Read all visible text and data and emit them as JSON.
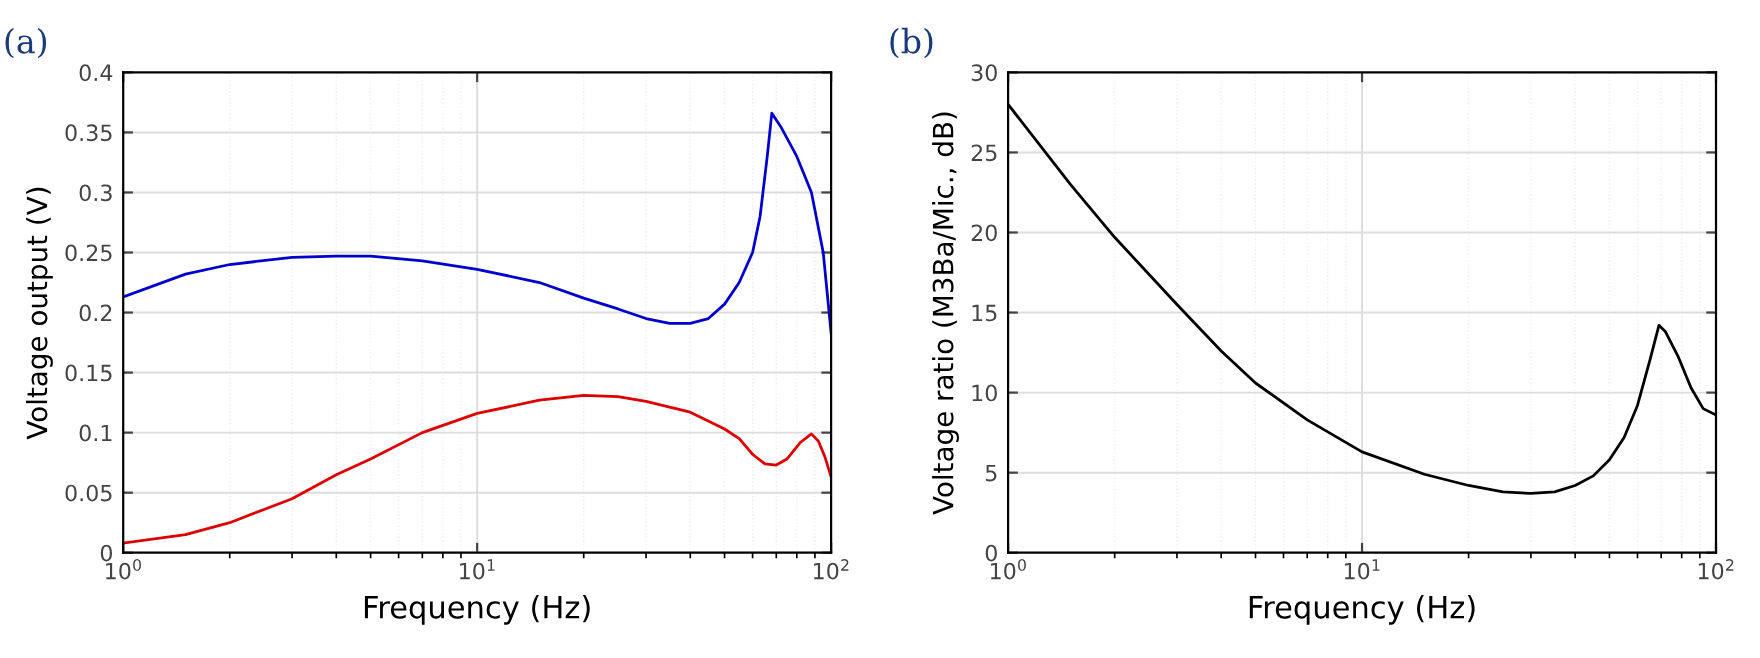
{
  "chart_data": [
    {
      "type": "line",
      "title": "(a)",
      "xlabel": "Frequency (Hz)",
      "ylabel": "Voltage output (V)",
      "log": "x",
      "grid": true,
      "xlim": [
        1,
        100
      ],
      "xticks": [
        {
          "value": 1,
          "label": "10$^{0}$"
        },
        {
          "value": 10,
          "label": "10$^{1}$"
        },
        {
          "value": 100,
          "label": "10$^{2}$"
        }
      ],
      "ylim": [
        0,
        0.4
      ],
      "yticks": [
        0,
        0.05,
        0.1,
        0.15,
        0.2,
        0.25,
        0.3,
        0.35,
        0.4
      ],
      "series": [
        {
          "color": "#0000cc",
          "x": [
            1,
            1.5,
            2,
            3,
            4,
            5,
            7,
            10,
            15,
            20,
            25,
            30,
            35,
            40,
            45,
            50,
            55,
            60,
            63,
            66,
            68,
            72,
            80,
            88,
            95,
            100
          ],
          "values": [
            0.213,
            0.232,
            0.24,
            0.246,
            0.247,
            0.247,
            0.243,
            0.236,
            0.225,
            0.212,
            0.203,
            0.195,
            0.191,
            0.191,
            0.195,
            0.207,
            0.225,
            0.25,
            0.28,
            0.33,
            0.366,
            0.355,
            0.33,
            0.3,
            0.25,
            0.183
          ]
        },
        {
          "color": "#dd0000",
          "x": [
            1,
            1.5,
            2,
            3,
            4,
            5,
            7,
            10,
            15,
            20,
            25,
            30,
            40,
            50,
            55,
            60,
            65,
            70,
            75,
            82,
            88,
            92,
            96,
            100
          ],
          "values": [
            0.008,
            0.015,
            0.025,
            0.045,
            0.065,
            0.078,
            0.1,
            0.116,
            0.127,
            0.131,
            0.13,
            0.126,
            0.117,
            0.103,
            0.095,
            0.082,
            0.074,
            0.073,
            0.078,
            0.092,
            0.099,
            0.093,
            0.08,
            0.063
          ]
        }
      ]
    },
    {
      "type": "line",
      "title": "(b)",
      "xlabel": "Frequency (Hz)",
      "ylabel": "Voltage ratio (M3Ba/Mic., dB)",
      "log": "x",
      "grid": true,
      "xlim": [
        1,
        100
      ],
      "xticks": [
        {
          "value": 1,
          "label": "10$^{0}$"
        },
        {
          "value": 10,
          "label": "10$^{1}$"
        },
        {
          "value": 100,
          "label": "10$^{2}$"
        }
      ],
      "ylim": [
        0,
        30
      ],
      "yticks": [
        0,
        5,
        10,
        15,
        20,
        25,
        30
      ],
      "series": [
        {
          "color": "#000000",
          "x": [
            1,
            1.5,
            2,
            3,
            4,
            5,
            7,
            10,
            15,
            20,
            25,
            30,
            35,
            40,
            45,
            50,
            55,
            60,
            65,
            69,
            72,
            78,
            85,
            92,
            100
          ],
          "values": [
            28,
            23,
            19.7,
            15.5,
            12.6,
            10.6,
            8.3,
            6.3,
            4.9,
            4.2,
            3.8,
            3.7,
            3.8,
            4.2,
            4.8,
            5.8,
            7.2,
            9.2,
            12.0,
            14.2,
            13.8,
            12.3,
            10.3,
            9.0,
            8.6
          ]
        }
      ]
    }
  ]
}
